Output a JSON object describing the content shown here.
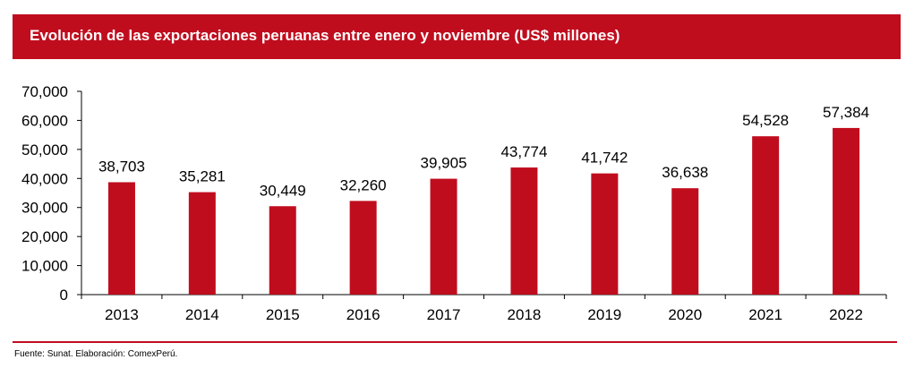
{
  "header": {
    "title": "Evolución de las exportaciones peruanas entre enero y noviembre (US$ millones)"
  },
  "footer": {
    "source": "Fuente: Sunat. Elaboración: ComexPerú."
  },
  "colors": {
    "accent": "#c00d1e",
    "bar": "#c00d1e"
  },
  "chart_data": {
    "type": "bar",
    "title": "Evolución de las exportaciones peruanas entre enero y noviembre (US$ millones)",
    "xlabel": "",
    "ylabel": "",
    "categories": [
      "2013",
      "2014",
      "2015",
      "2016",
      "2017",
      "2018",
      "2019",
      "2020",
      "2021",
      "2022"
    ],
    "values": [
      38703,
      35281,
      30449,
      32260,
      39905,
      43774,
      41742,
      36638,
      54528,
      57384
    ],
    "value_labels": [
      "38,703",
      "35,281",
      "30,449",
      "32,260",
      "39,905",
      "43,774",
      "41,742",
      "36,638",
      "54,528",
      "57,384"
    ],
    "yticks": [
      0,
      10000,
      20000,
      30000,
      40000,
      50000,
      60000,
      70000
    ],
    "ytick_labels": [
      "0",
      "10,000",
      "20,000",
      "30,000",
      "40,000",
      "50,000",
      "60,000",
      "70,000"
    ],
    "ylim": [
      0,
      70000
    ],
    "grid": false,
    "legend": "none"
  }
}
